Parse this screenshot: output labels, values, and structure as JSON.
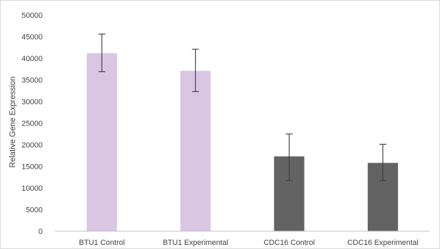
{
  "chart_data": {
    "type": "bar",
    "title": "",
    "xlabel": "",
    "ylabel": "Relative Gene Expression",
    "ylim": [
      0,
      50000
    ],
    "yticks": [
      0,
      5000,
      10000,
      15000,
      20000,
      25000,
      30000,
      35000,
      40000,
      45000,
      50000
    ],
    "grid": false,
    "legend": "none",
    "categories": [
      "BTU1 Control",
      "BTU1 Experimental",
      "CDC16 Control",
      "CDC16 Experimental"
    ],
    "values": [
      41200,
      37100,
      17300,
      15800
    ],
    "error_low": [
      36900,
      32300,
      11700,
      11700
    ],
    "error_high": [
      45600,
      42100,
      22500,
      20100
    ],
    "colors": [
      "#d8c6e3",
      "#d8c6e3",
      "#636363",
      "#636363"
    ],
    "error_color": "#404040",
    "axis_color": "#bfbfbf"
  }
}
